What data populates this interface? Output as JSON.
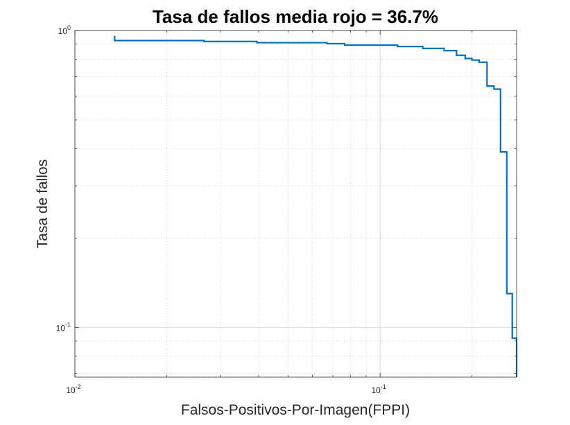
{
  "chart_data": {
    "type": "line",
    "title": "Tasa de fallos media rojo = 36.7%",
    "xlabel": "Falsos-Positivos-Por-Imagen(FPPI)",
    "ylabel": "Tasa de fallos",
    "x_scale": "log",
    "y_scale": "log",
    "xlim": [
      0.01,
      0.28
    ],
    "ylim": [
      0.068,
      1.0
    ],
    "grid": true,
    "minor_grid": true,
    "x_ticks": [
      {
        "value": 0.01,
        "base": "10",
        "exp": "-2"
      },
      {
        "value": 0.1,
        "base": "10",
        "exp": "-1"
      }
    ],
    "y_ticks": [
      {
        "value": 0.1,
        "base": "10",
        "exp": "-1"
      },
      {
        "value": 1.0,
        "base": "10",
        "exp": "0"
      }
    ],
    "series": [
      {
        "color": "#0072BD",
        "style": "step",
        "points": [
          [
            0.0135,
            0.96
          ],
          [
            0.0135,
            0.925
          ],
          [
            0.0265,
            0.925
          ],
          [
            0.0265,
            0.918
          ],
          [
            0.0395,
            0.918
          ],
          [
            0.0395,
            0.91
          ],
          [
            0.067,
            0.91
          ],
          [
            0.067,
            0.903
          ],
          [
            0.0765,
            0.903
          ],
          [
            0.0765,
            0.893
          ],
          [
            0.114,
            0.893
          ],
          [
            0.114,
            0.883
          ],
          [
            0.138,
            0.883
          ],
          [
            0.138,
            0.87
          ],
          [
            0.162,
            0.87
          ],
          [
            0.162,
            0.855
          ],
          [
            0.178,
            0.855
          ],
          [
            0.178,
            0.825
          ],
          [
            0.19,
            0.825
          ],
          [
            0.19,
            0.805
          ],
          [
            0.2,
            0.805
          ],
          [
            0.2,
            0.795
          ],
          [
            0.211,
            0.795
          ],
          [
            0.211,
            0.782
          ],
          [
            0.224,
            0.782
          ],
          [
            0.224,
            0.65
          ],
          [
            0.236,
            0.65
          ],
          [
            0.236,
            0.635
          ],
          [
            0.248,
            0.635
          ],
          [
            0.248,
            0.39
          ],
          [
            0.26,
            0.39
          ],
          [
            0.26,
            0.13
          ],
          [
            0.271,
            0.13
          ],
          [
            0.271,
            0.092
          ],
          [
            0.28,
            0.092
          ],
          [
            0.28,
            0.068
          ]
        ]
      }
    ]
  }
}
